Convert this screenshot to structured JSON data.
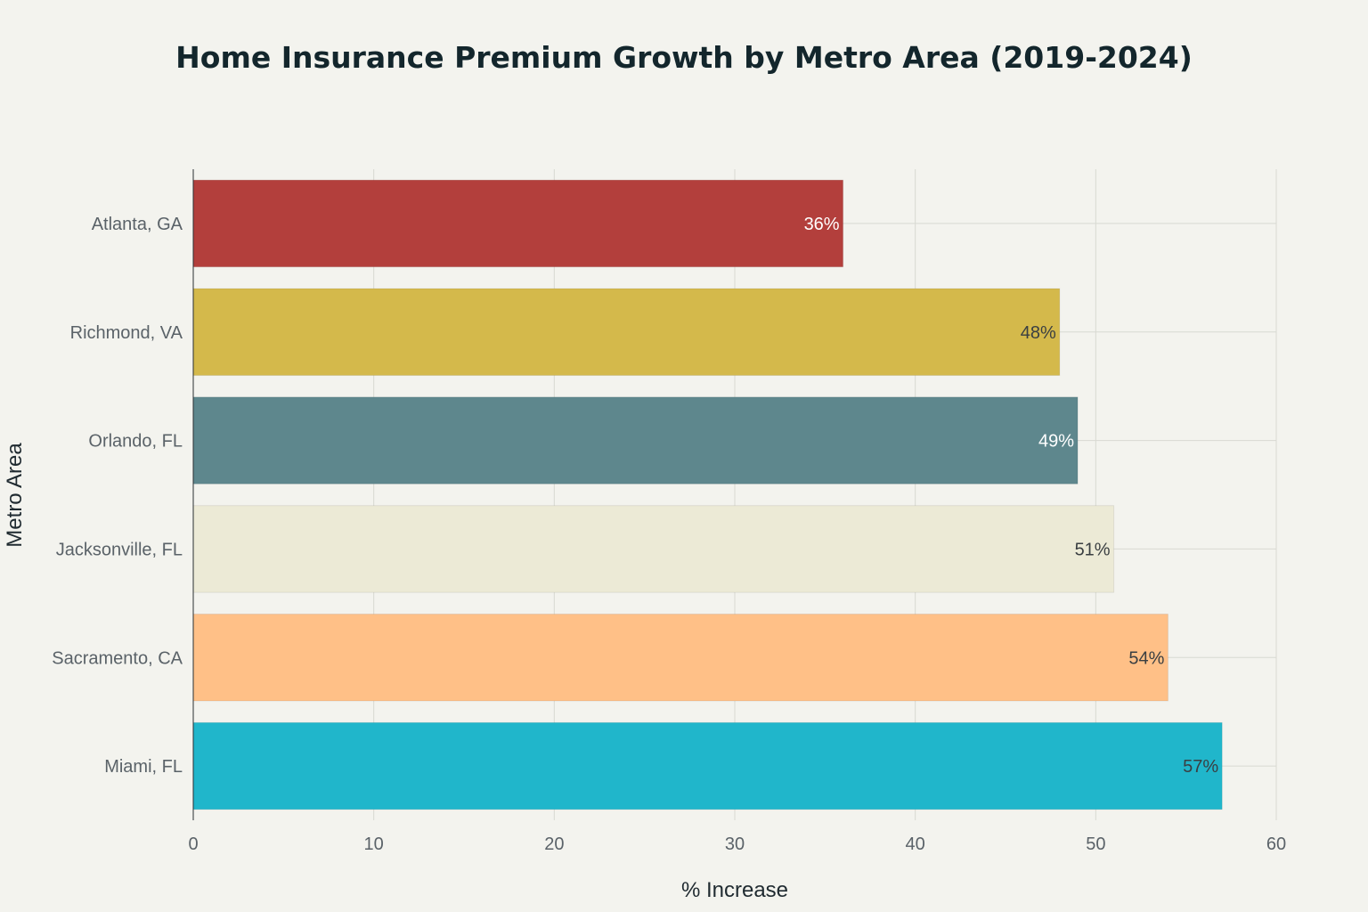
{
  "chart_data": {
    "type": "bar",
    "orientation": "horizontal",
    "title": "Home Insurance Premium Growth by Metro Area (2019-2024)",
    "xlabel": "% Increase",
    "ylabel": "Metro Area",
    "xlim": [
      0,
      60
    ],
    "x_ticks": [
      "0",
      "10",
      "20",
      "30",
      "40",
      "50",
      "60"
    ],
    "grid": true,
    "categories": [
      "Atlanta, GA",
      "Richmond, VA",
      "Orlando, FL",
      "Jacksonville, FL",
      "Sacramento, CA",
      "Miami, FL"
    ],
    "values": [
      36,
      48,
      49,
      51,
      54,
      57
    ],
    "data_labels": [
      "36%",
      "48%",
      "49%",
      "51%",
      "54%",
      "57%"
    ],
    "colors": [
      "#b33f3c",
      "#d4b94b",
      "#5e878d",
      "#ecead6",
      "#ffc087",
      "#20b6cb"
    ],
    "label_colors": [
      "#ffffff",
      "#3a3f42",
      "#ffffff",
      "#3a3f42",
      "#3a3f42",
      "#3a3f42"
    ]
  }
}
